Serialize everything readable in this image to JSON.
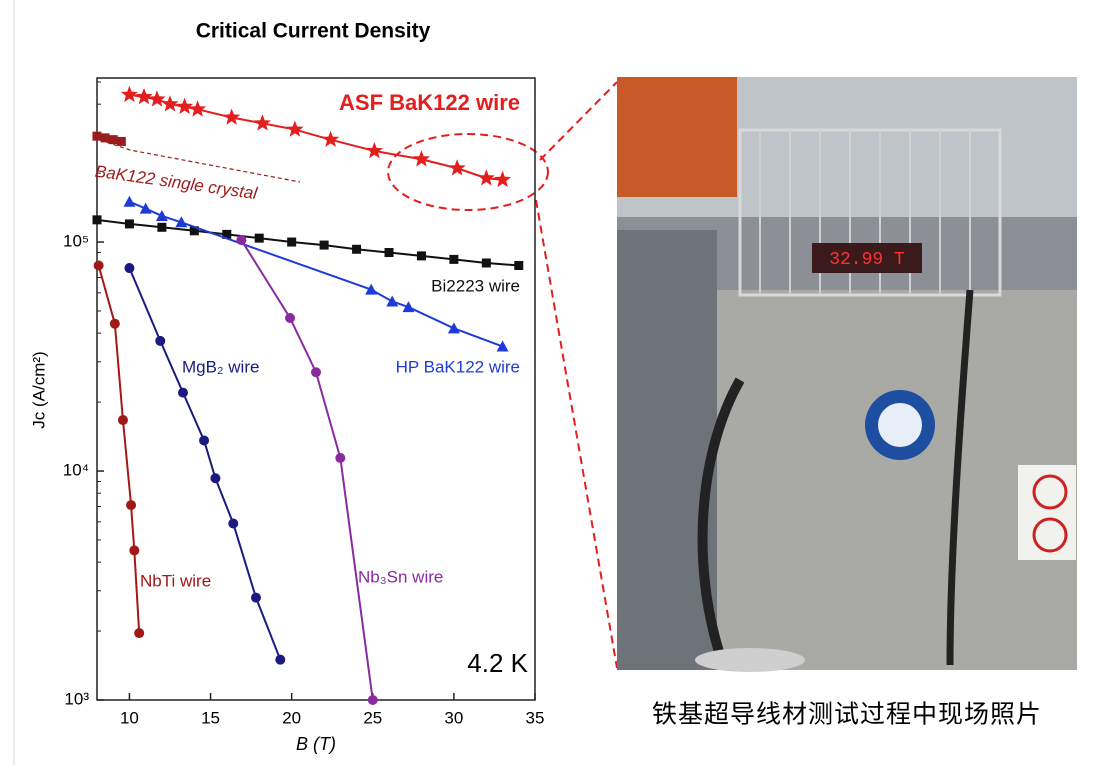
{
  "chart_data": {
    "type": "scatter-line",
    "title": "Critical Current Density",
    "xlabel": "B (T)",
    "ylabel": "Jc (A/cm²)",
    "log_y": true,
    "xlim": [
      8,
      35
    ],
    "xticks": [
      10,
      15,
      20,
      25,
      30,
      35
    ],
    "ylim": [
      1000,
      500000
    ],
    "yticks": [
      {
        "value": 1000,
        "label": "10³"
      },
      {
        "value": 10000,
        "label": "10⁴"
      },
      {
        "value": 100000,
        "label": "10⁵"
      }
    ],
    "annotation": "4.2 K",
    "series": [
      {
        "name": "ASF BaK122 wire",
        "color": "#e41d1d",
        "marker": "star",
        "x": [
          10.0,
          10.9,
          11.7,
          12.5,
          13.4,
          14.2,
          16.3,
          18.2,
          20.2,
          22.4,
          25.1,
          28.0,
          30.2,
          32.0,
          33.0
        ],
        "values": [
          440000,
          430000,
          420000,
          400000,
          390000,
          380000,
          350000,
          330000,
          310000,
          280000,
          250000,
          230000,
          210000,
          190000,
          187000
        ]
      },
      {
        "name": "BaK122 single crystal",
        "color": "#9b1c1c",
        "marker": "square",
        "x": [
          8.0,
          8.5,
          9.0,
          9.5
        ],
        "values": [
          290000,
          285000,
          280000,
          275000
        ]
      },
      {
        "name": "Bi2223 wire",
        "color": "#111111",
        "marker": "square",
        "x": [
          8,
          10,
          12,
          14,
          16,
          18,
          20,
          22,
          24,
          26,
          28,
          30,
          32,
          34
        ],
        "values": [
          125000,
          120000,
          116000,
          112000,
          108000,
          104000,
          100000,
          97000,
          93000,
          90000,
          87000,
          84000,
          81000,
          79000
        ]
      },
      {
        "name": "HP BaK122 wire",
        "color": "#1f3bd6",
        "marker": "triangle",
        "x": [
          10,
          11,
          12,
          13.2,
          24.9,
          26.2,
          27.2,
          30,
          33
        ],
        "values": [
          150000,
          140000,
          130000,
          122000,
          62000,
          55000,
          52000,
          42000,
          35000
        ]
      },
      {
        "name": "MgB₂ wire",
        "color": "#1a1a80",
        "marker": "circle",
        "x": [
          10,
          11.9,
          13.3,
          14.6,
          15.3,
          16.4,
          17.8,
          19.3
        ],
        "values": [
          77000,
          37000,
          22000,
          13600,
          9300,
          5900,
          2800,
          1500
        ]
      },
      {
        "name": "NbTi wire",
        "color": "#a01818",
        "marker": "circle",
        "x": [
          8.1,
          9.1,
          9.6,
          10.1,
          10.3,
          10.6
        ],
        "values": [
          79000,
          44000,
          16700,
          7100,
          4500,
          1960
        ]
      },
      {
        "name": "Nb₃Sn wire",
        "color": "#8a2aa0",
        "marker": "circle",
        "x": [
          16.9,
          19.9,
          21.5,
          23.0,
          25.0
        ],
        "values": [
          102000,
          46600,
          27000,
          11400,
          1000
        ]
      }
    ]
  },
  "photo": {
    "display": "32.99 T",
    "caption": "铁基超导线材测试过程中现场照片"
  }
}
